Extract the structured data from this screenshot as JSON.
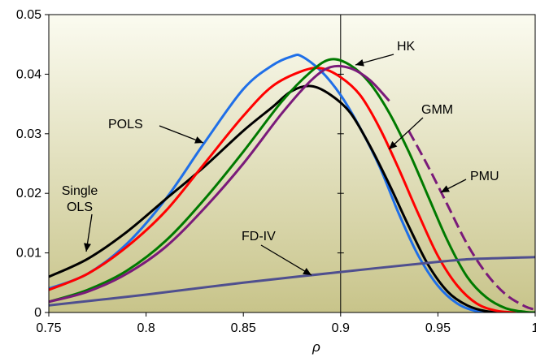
{
  "chart_data": {
    "type": "line",
    "title": "",
    "xlabel": "ρ",
    "ylabel": "",
    "xlim": [
      0.75,
      1.0
    ],
    "ylim": [
      0,
      0.05
    ],
    "x_ticks": [
      0.75,
      0.8,
      0.85,
      0.9,
      0.95,
      1.0
    ],
    "x_tick_labels": [
      "0.75",
      "0.8",
      "0.85",
      "0.9",
      "0.95",
      "1"
    ],
    "y_ticks": [
      0,
      0.01,
      0.02,
      0.03,
      0.04,
      0.05
    ],
    "y_tick_labels": [
      "0",
      "0.01",
      "0.02",
      "0.03",
      "0.04",
      "0.05"
    ],
    "grid": false,
    "vertical_reference_line_x": 0.9,
    "background": {
      "top": "#fbfbf0",
      "bottom": "#c8c48a"
    },
    "series": [
      {
        "name": "POLS",
        "color": "#1f6fe8",
        "dashed_after": null,
        "points": [
          [
            0.75,
            0.004
          ],
          [
            0.77,
            0.0065
          ],
          [
            0.79,
            0.0115
          ],
          [
            0.81,
            0.019
          ],
          [
            0.83,
            0.0285
          ],
          [
            0.85,
            0.0375
          ],
          [
            0.865,
            0.0415
          ],
          [
            0.875,
            0.043
          ],
          [
            0.88,
            0.043
          ],
          [
            0.89,
            0.0405
          ],
          [
            0.9,
            0.0365
          ],
          [
            0.91,
            0.031
          ],
          [
            0.92,
            0.0245
          ],
          [
            0.93,
            0.0165
          ],
          [
            0.94,
            0.0095
          ],
          [
            0.95,
            0.0045
          ],
          [
            0.96,
            0.0015
          ],
          [
            0.97,
            0.0002
          ],
          [
            0.98,
            0
          ]
        ]
      },
      {
        "name": "Single OLS",
        "color": "#000000",
        "dashed_after": null,
        "points": [
          [
            0.75,
            0.006
          ],
          [
            0.77,
            0.009
          ],
          [
            0.79,
            0.0135
          ],
          [
            0.81,
            0.019
          ],
          [
            0.83,
            0.0245
          ],
          [
            0.85,
            0.0305
          ],
          [
            0.865,
            0.0345
          ],
          [
            0.875,
            0.0372
          ],
          [
            0.885,
            0.038
          ],
          [
            0.895,
            0.0365
          ],
          [
            0.905,
            0.0335
          ],
          [
            0.915,
            0.028
          ],
          [
            0.925,
            0.0215
          ],
          [
            0.935,
            0.0145
          ],
          [
            0.945,
            0.008
          ],
          [
            0.955,
            0.0035
          ],
          [
            0.965,
            0.0012
          ],
          [
            0.975,
            0.0002
          ],
          [
            0.985,
            0
          ]
        ]
      },
      {
        "name": "GMM",
        "color": "#ff0000",
        "dashed_after": null,
        "points": [
          [
            0.75,
            0.0038
          ],
          [
            0.77,
            0.0065
          ],
          [
            0.79,
            0.011
          ],
          [
            0.81,
            0.017
          ],
          [
            0.83,
            0.025
          ],
          [
            0.85,
            0.033
          ],
          [
            0.865,
            0.038
          ],
          [
            0.88,
            0.0405
          ],
          [
            0.89,
            0.041
          ],
          [
            0.9,
            0.0395
          ],
          [
            0.91,
            0.0365
          ],
          [
            0.92,
            0.031
          ],
          [
            0.93,
            0.024
          ],
          [
            0.94,
            0.0165
          ],
          [
            0.95,
            0.0095
          ],
          [
            0.96,
            0.0045
          ],
          [
            0.97,
            0.0015
          ],
          [
            0.98,
            0.0003
          ],
          [
            0.99,
            0
          ]
        ]
      },
      {
        "name": "HK",
        "color": "#007a00",
        "dashed_after": null,
        "points": [
          [
            0.75,
            0.0018
          ],
          [
            0.77,
            0.0038
          ],
          [
            0.79,
            0.007
          ],
          [
            0.81,
            0.012
          ],
          [
            0.83,
            0.019
          ],
          [
            0.85,
            0.027
          ],
          [
            0.87,
            0.0355
          ],
          [
            0.885,
            0.0405
          ],
          [
            0.895,
            0.0425
          ],
          [
            0.905,
            0.0415
          ],
          [
            0.915,
            0.0385
          ],
          [
            0.925,
            0.0335
          ],
          [
            0.935,
            0.027
          ],
          [
            0.945,
            0.0195
          ],
          [
            0.955,
            0.012
          ],
          [
            0.965,
            0.006
          ],
          [
            0.975,
            0.0025
          ],
          [
            0.985,
            0.0007
          ],
          [
            0.995,
            0.0001
          ],
          [
            1.0,
            0
          ]
        ]
      },
      {
        "name": "PMU",
        "color": "#7a1a7a",
        "dashed_after": 0.93,
        "points": [
          [
            0.75,
            0.0018
          ],
          [
            0.77,
            0.0035
          ],
          [
            0.79,
            0.0065
          ],
          [
            0.81,
            0.011
          ],
          [
            0.83,
            0.0175
          ],
          [
            0.85,
            0.025
          ],
          [
            0.87,
            0.0335
          ],
          [
            0.885,
            0.039
          ],
          [
            0.895,
            0.0412
          ],
          [
            0.905,
            0.041
          ],
          [
            0.915,
            0.039
          ],
          [
            0.925,
            0.0355
          ],
          [
            0.935,
            0.0305
          ],
          [
            0.945,
            0.0245
          ],
          [
            0.955,
            0.018
          ],
          [
            0.965,
            0.0115
          ],
          [
            0.975,
            0.0065
          ],
          [
            0.985,
            0.003
          ],
          [
            0.995,
            0.001
          ],
          [
            1.0,
            0.0005
          ]
        ]
      },
      {
        "name": "FD-IV",
        "color": "#4f4f8f",
        "dashed_after": null,
        "points": [
          [
            0.75,
            0.0012
          ],
          [
            0.8,
            0.003
          ],
          [
            0.85,
            0.005
          ],
          [
            0.9,
            0.0068
          ],
          [
            0.95,
            0.0085
          ],
          [
            0.97,
            0.009
          ],
          [
            1.0,
            0.0093
          ]
        ]
      }
    ],
    "annotations": [
      {
        "id": "hk",
        "text": "HK",
        "series": "HK"
      },
      {
        "id": "pols",
        "text": "POLS",
        "series": "POLS"
      },
      {
        "id": "gmm",
        "text": "GMM",
        "series": "GMM"
      },
      {
        "id": "pmu",
        "text": "PMU",
        "series": "PMU"
      },
      {
        "id": "single-ols",
        "text": [
          "Single",
          "OLS"
        ],
        "series": "Single OLS"
      },
      {
        "id": "fd-iv",
        "text": "FD-IV",
        "series": "FD-IV"
      }
    ]
  }
}
